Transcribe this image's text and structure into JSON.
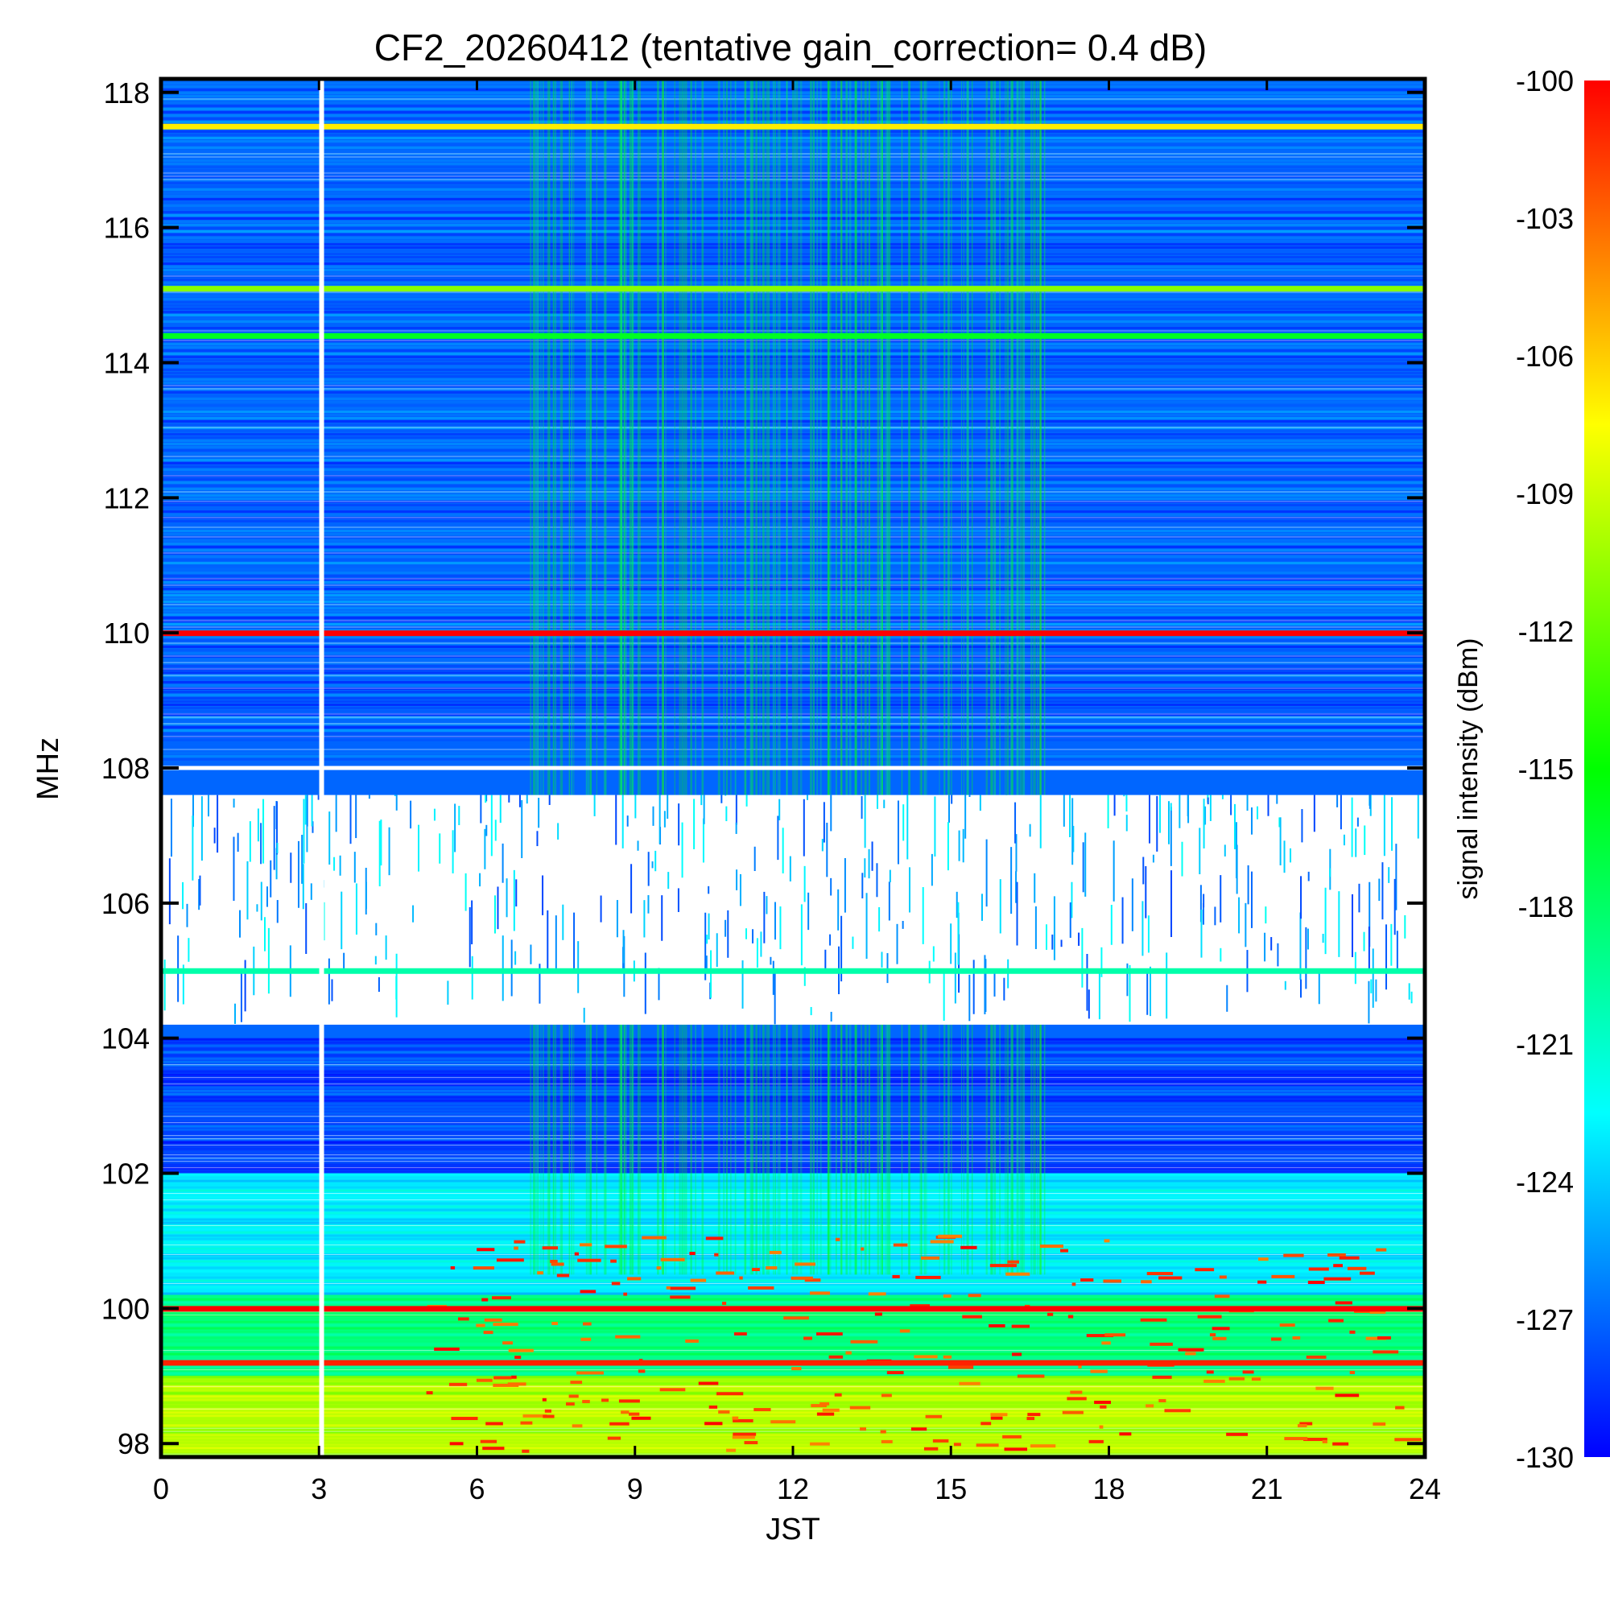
{
  "chart_data": {
    "type": "heatmap",
    "title": "CF2_20260412 (tentative gain_correction=  0.4 dB)",
    "xlabel": "JST",
    "ylabel": "MHz",
    "colorbar_label": "signal intensity (dBm)",
    "xlim": [
      0,
      24
    ],
    "ylim": [
      97.8,
      118.2
    ],
    "zlim": [
      -130,
      -100
    ],
    "x_ticks": [
      0,
      3,
      6,
      9,
      12,
      15,
      18,
      21,
      24
    ],
    "x_tick_labels": [
      "0",
      "3",
      "6",
      "9",
      "12",
      "15",
      "18",
      "21",
      "24"
    ],
    "y_ticks": [
      98,
      100,
      102,
      104,
      106,
      108,
      110,
      112,
      114,
      116,
      118
    ],
    "y_tick_labels": [
      "98",
      "100",
      "102",
      "104",
      "106",
      "108",
      "110",
      "112",
      "114",
      "116",
      "118"
    ],
    "colorbar_ticks": [
      -100,
      -103,
      -106,
      -109,
      -112,
      -115,
      -118,
      -121,
      -124,
      -127,
      -130
    ],
    "colorbar_tick_labels": [
      "-100",
      "-103",
      "-106",
      "-109",
      "-112",
      "-115",
      "-118",
      "-121",
      "-124",
      "-127",
      "-130"
    ],
    "colormap": [
      "#0000ff",
      "#00ffff",
      "#00ff00",
      "#ffff00",
      "#ff0000"
    ],
    "data_gap_jst": 3.05,
    "band_boundary_mhz": 108,
    "background_intensity_bands": [
      {
        "mhz_range": [
          108.1,
          118.2
        ],
        "dbm": -127
      },
      {
        "mhz_range": [
          102.0,
          104.0
        ],
        "dbm": -128
      },
      {
        "mhz_range": [
          100.2,
          102.0
        ],
        "dbm": -123
      },
      {
        "mhz_range": [
          99.0,
          100.2
        ],
        "dbm": -119
      },
      {
        "mhz_range": [
          97.8,
          99.0
        ],
        "dbm": -110
      }
    ],
    "saturated_white_band_mhz": [
      104.2,
      107.6
    ],
    "strong_carriers": [
      {
        "mhz": 117.5,
        "dbm": -107
      },
      {
        "mhz": 115.1,
        "dbm": -111
      },
      {
        "mhz": 114.4,
        "dbm": -116
      },
      {
        "mhz": 110.0,
        "dbm": -100
      },
      {
        "mhz": 105.0,
        "dbm": -120
      },
      {
        "mhz": 100.0,
        "dbm": -100
      },
      {
        "mhz": 99.2,
        "dbm": -101
      }
    ]
  }
}
